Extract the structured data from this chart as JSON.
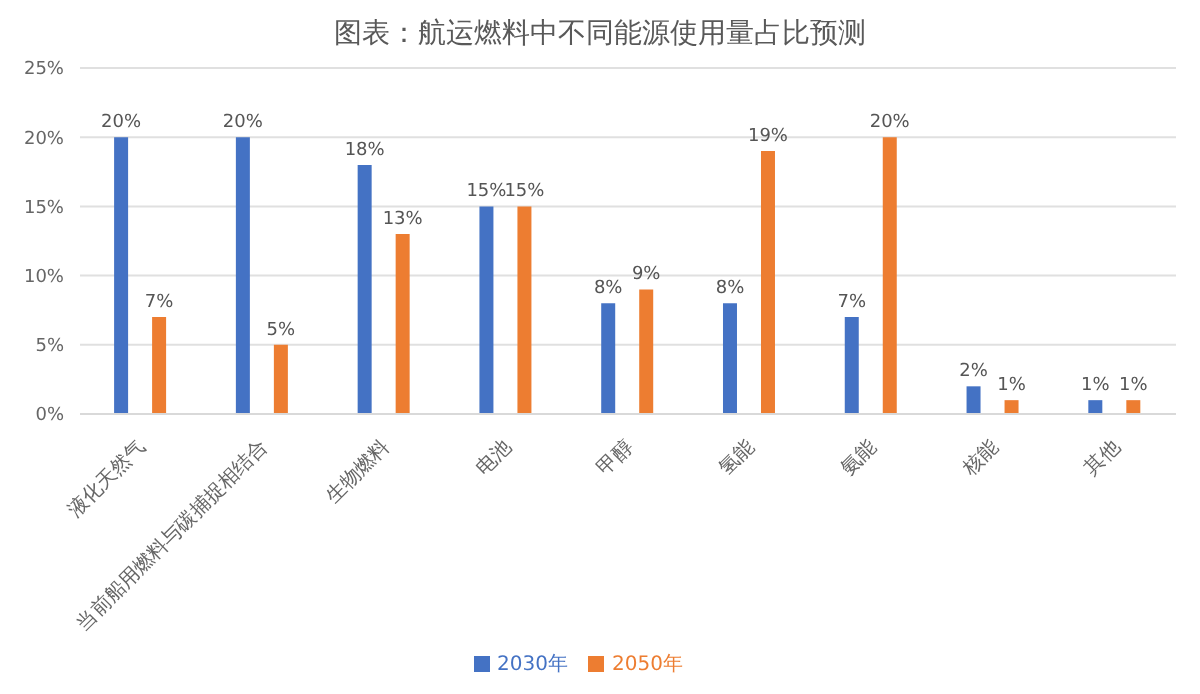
{
  "chart_data": {
    "type": "bar",
    "title": "图表：航运燃料中不同能源使用量占比预测",
    "categories": [
      "液化天然气",
      "当前船用燃料与碳捕捉相结合",
      "生物燃料",
      "电池",
      "甲醇",
      "氢能",
      "氨能",
      "核能",
      "其他"
    ],
    "series": [
      {
        "name": "2030年",
        "color": "#4472c4",
        "values": [
          20,
          20,
          18,
          15,
          8,
          8,
          7,
          2,
          1
        ],
        "value_labels": [
          "20%",
          "20%",
          "18%",
          "15%",
          "8%",
          "8%",
          "7%",
          "2%",
          "1%"
        ]
      },
      {
        "name": "2050年",
        "color": "#ed7d31",
        "values": [
          7,
          5,
          13,
          15,
          9,
          19,
          20,
          1,
          1
        ],
        "value_labels": [
          "7%",
          "5%",
          "13%",
          "15%",
          "9%",
          "19%",
          "20%",
          "1%",
          "1%"
        ]
      }
    ],
    "ylim": [
      0,
      25
    ],
    "yticks": [
      {
        "value": 0,
        "label": "0%"
      },
      {
        "value": 5,
        "label": "5%"
      },
      {
        "value": 10,
        "label": "10%"
      },
      {
        "value": 15,
        "label": "15%"
      },
      {
        "value": 20,
        "label": "20%"
      },
      {
        "value": 25,
        "label": "25%"
      }
    ],
    "grid": "y",
    "legend": "bottom"
  }
}
